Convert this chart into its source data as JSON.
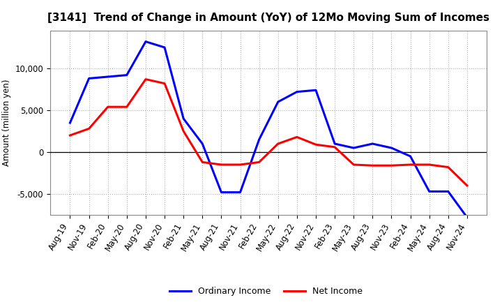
{
  "title": "[3141]  Trend of Change in Amount (YoY) of 12Mo Moving Sum of Incomes",
  "ylabel": "Amount (million yen)",
  "x_labels": [
    "Aug-19",
    "Nov-19",
    "Feb-20",
    "May-20",
    "Aug-20",
    "Nov-20",
    "Feb-21",
    "May-21",
    "Aug-21",
    "Nov-21",
    "Feb-22",
    "May-22",
    "Aug-22",
    "Nov-22",
    "Feb-23",
    "May-23",
    "Aug-23",
    "Nov-23",
    "Feb-24",
    "May-24",
    "Aug-24",
    "Nov-24"
  ],
  "ordinary_income": [
    3500,
    8800,
    9000,
    9200,
    13200,
    12500,
    4000,
    1000,
    -4800,
    -4800,
    1500,
    6000,
    7200,
    7400,
    1000,
    500,
    1000,
    500,
    -500,
    -4700,
    -4700,
    -7800
  ],
  "net_income": [
    2000,
    2800,
    5400,
    5400,
    8700,
    8200,
    2500,
    -1200,
    -1500,
    -1500,
    -1200,
    1000,
    1800,
    900,
    600,
    -1500,
    -1600,
    -1600,
    -1500,
    -1500,
    -1800,
    -4000
  ],
  "ordinary_income_color": "#0000ff",
  "net_income_color": "#ff0000",
  "background_color": "#ffffff",
  "grid_color": "#b0b0b0",
  "ylim": [
    -7500,
    14500
  ],
  "yticks": [
    -5000,
    0,
    5000,
    10000
  ],
  "legend_labels": [
    "Ordinary Income",
    "Net Income"
  ],
  "title_fontsize": 11,
  "axis_fontsize": 8.5,
  "ylabel_fontsize": 8.5,
  "legend_fontsize": 9,
  "linewidth": 2.2
}
